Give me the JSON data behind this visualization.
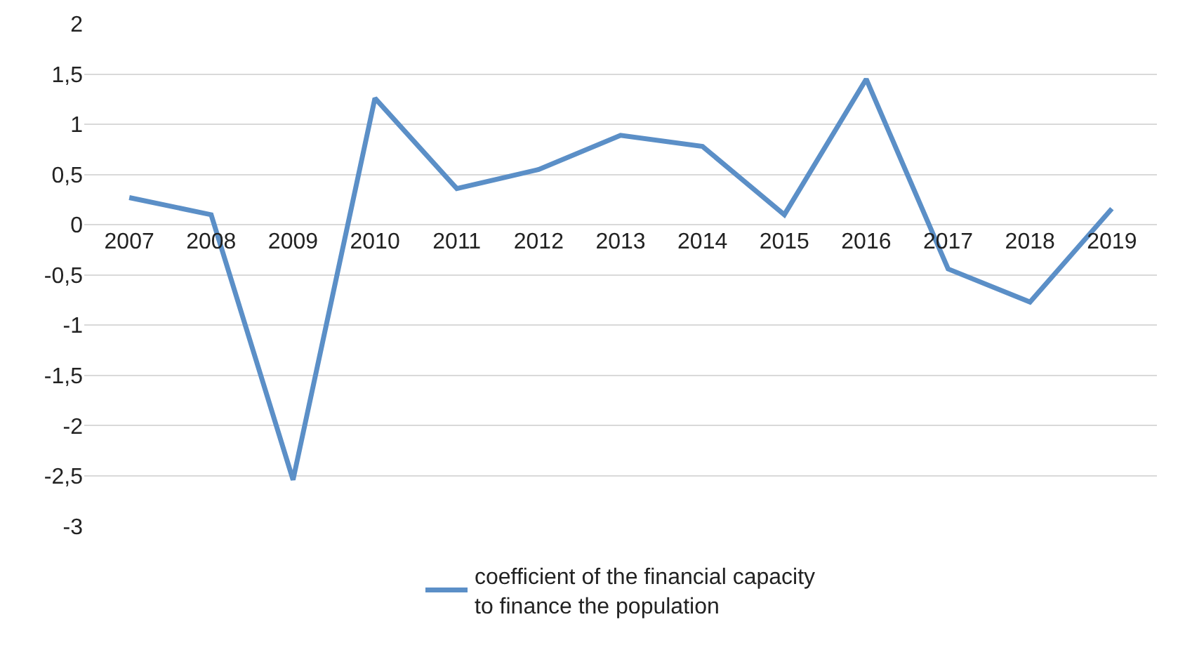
{
  "chart_data": {
    "type": "line",
    "categories": [
      "2007",
      "2008",
      "2009",
      "2010",
      "2011",
      "2012",
      "2013",
      "2014",
      "2015",
      "2016",
      "2017",
      "2018",
      "2019"
    ],
    "series": [
      {
        "name": "coefficient of the financial capacity to finance the population",
        "color": "#5b8fc7",
        "values": [
          0.27,
          0.1,
          -2.54,
          1.26,
          0.36,
          0.55,
          0.89,
          0.78,
          0.1,
          1.45,
          -0.44,
          -0.77,
          0.16
        ]
      }
    ],
    "ylim": [
      -3,
      2
    ],
    "yticks": [
      -3,
      {
        "value": -2.5,
        "label": "-2,5"
      },
      -2,
      {
        "value": -1.5,
        "label": "-1,5"
      },
      -1,
      {
        "value": -0.5,
        "label": "-0,5"
      },
      0,
      {
        "value": 0.5,
        "label": "0,5"
      },
      1,
      {
        "value": 1.5,
        "label": "1,5"
      },
      2
    ],
    "grid": "y",
    "legend": "bottom",
    "marker": "none",
    "line_style": "solid"
  }
}
